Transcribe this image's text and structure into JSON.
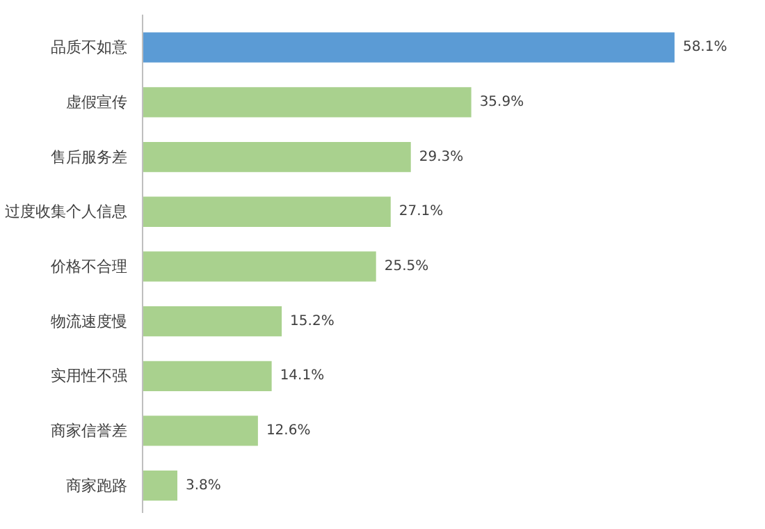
{
  "chart_data": {
    "type": "bar",
    "orientation": "horizontal",
    "categories": [
      "品质不如意",
      "虚假宣传",
      "售后服务差",
      "过度收集个人信息",
      "价格不合理",
      "物流速度慢",
      "实用性不强",
      "商家信誉差",
      "商家跑路"
    ],
    "values": [
      58.1,
      35.9,
      29.3,
      27.1,
      25.5,
      15.2,
      14.1,
      12.6,
      3.8
    ],
    "colors": [
      "#5b9bd5",
      "#a9d18e",
      "#a9d18e",
      "#a9d18e",
      "#a9d18e",
      "#a9d18e",
      "#a9d18e",
      "#a9d18e",
      "#a9d18e"
    ],
    "value_labels": [
      "58.1%",
      "35.9%",
      "29.3%",
      "27.1%",
      "25.5%",
      "15.2%",
      "14.1%",
      "12.6%",
      "3.8%"
    ],
    "grid": false
  }
}
